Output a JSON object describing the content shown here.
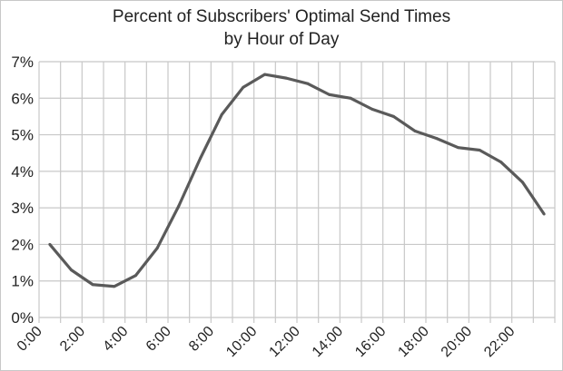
{
  "chart_data": {
    "type": "line",
    "title": "Percent of Subscribers' Optimal Send Times",
    "subtitle": "by Hour of Day",
    "xlabel": "",
    "ylabel": "",
    "categories": [
      "0:00",
      "1:00",
      "2:00",
      "3:00",
      "4:00",
      "5:00",
      "6:00",
      "7:00",
      "8:00",
      "9:00",
      "10:00",
      "11:00",
      "12:00",
      "13:00",
      "14:00",
      "15:00",
      "16:00",
      "17:00",
      "18:00",
      "19:00",
      "20:00",
      "21:00",
      "22:00",
      "23:00"
    ],
    "x_tick_labels": [
      "0:00",
      "2:00",
      "4:00",
      "6:00",
      "8:00",
      "10:00",
      "12:00",
      "14:00",
      "16:00",
      "18:00",
      "20:00",
      "22:00"
    ],
    "values": [
      2.0,
      1.3,
      0.9,
      0.85,
      1.15,
      1.9,
      3.05,
      4.35,
      5.55,
      6.3,
      6.65,
      6.55,
      6.4,
      6.1,
      6.0,
      5.7,
      5.5,
      5.1,
      4.9,
      4.65,
      4.58,
      4.25,
      3.7,
      2.83
    ],
    "y_unit": "%",
    "ylim": [
      0,
      7
    ],
    "y_tick_labels": [
      "0%",
      "1%",
      "2%",
      "3%",
      "4%",
      "5%",
      "6%",
      "7%"
    ],
    "grid": true,
    "legend": "none",
    "colors": {
      "line": "#5a5a5a",
      "grid": "#c8c8c8"
    }
  }
}
